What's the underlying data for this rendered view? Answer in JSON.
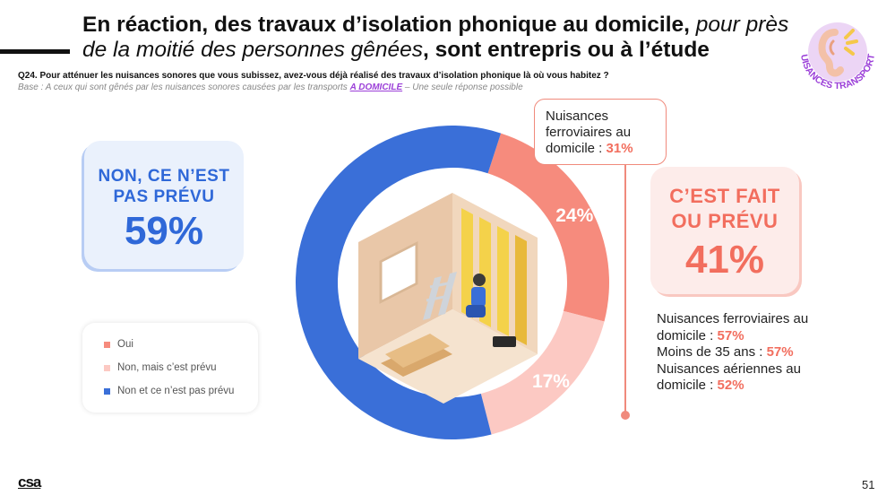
{
  "title": {
    "part1_bold": "En réaction, des travaux d’isolation phonique au domicile,",
    "part2_italic": " pour près de la moitié des personnes gênées",
    "part3_bold": ", sont entrepris ou à l’étude"
  },
  "question": "Q24. Pour atténuer les nuisances sonores que vous subissez, avez-vous déjà réalisé des travaux d’isolation phonique là où vous habitez ?",
  "base": {
    "prefix": "Base : A ceux qui sont gênés par les nuisances sonores causées par les transports",
    "highlight": "A DOMICILE",
    "suffix": "– Une seule réponse possible"
  },
  "badge": {
    "text": "NUISANCES TRANSPORTS",
    "icon": "ear-sound-icon"
  },
  "left_card": {
    "label_line1": "NON, CE N’EST",
    "label_line2": "PAS PRÉVU",
    "value": "59%"
  },
  "right_card": {
    "label_line1": "C’EST FAIT",
    "label_line2": "OU PRÉVU",
    "value": "41%"
  },
  "callout_top": {
    "text_line1": "Nuisances",
    "text_line2": "ferroviaires au",
    "text_line3": "domicile : ",
    "value": "31%"
  },
  "details": [
    {
      "text_line1": "Nuisances ferroviaires au",
      "text_line2": "domicile : ",
      "value": "57%"
    },
    {
      "text_line1": "Moins de 35 ans : ",
      "value": "57%"
    },
    {
      "text_line1": "Nuisances aériennes au",
      "text_line2": "domicile : ",
      "value": "52%"
    }
  ],
  "legend": [
    {
      "label": "Oui",
      "color": "#f68b7d"
    },
    {
      "label": "Non, mais c’est prévu",
      "color": "#fcc9c3"
    },
    {
      "label": "Non et ce n’est pas prévu",
      "color": "#3a6fd8"
    }
  ],
  "chart_data": {
    "type": "pie",
    "donut": true,
    "categories": [
      "Oui",
      "Non, mais c’est prévu",
      "Non et ce n’est pas prévu"
    ],
    "values": [
      24,
      17,
      59
    ],
    "labels": [
      "24%",
      "17%",
      ""
    ],
    "colors": [
      "#f68b7d",
      "#fcc9c3",
      "#3a6fd8"
    ],
    "center_icon": "house-insulation-work-illustration"
  },
  "footer": {
    "logo": "csa",
    "page": "51"
  }
}
